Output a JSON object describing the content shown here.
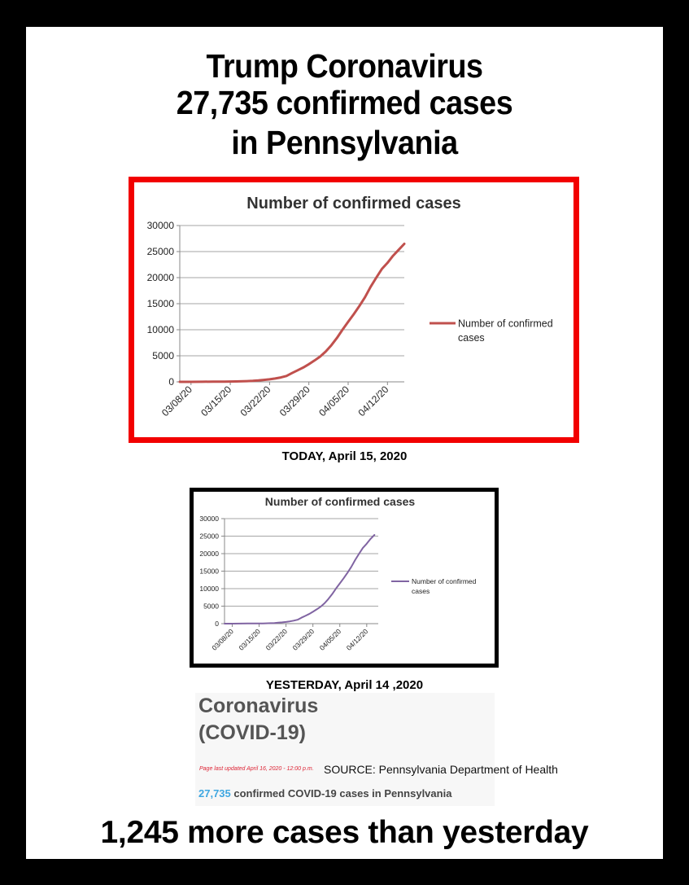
{
  "headline": {
    "line1": "Trump Coronavirus",
    "line2": "27,735 confirmed cases",
    "line3": "in Pennsylvania"
  },
  "captions": {
    "today": "TODAY, April 15, 2020",
    "yesterday": "YESTERDAY, April 14 ,2020"
  },
  "source_panel": {
    "title_line1": "Coronavirus",
    "title_line2": "(COVID-19)",
    "updated": "Page last updated April 16, 2020 - 12:00 p.m.",
    "credit": "SOURCE: Pennsylvania Department of Health",
    "cases_number": "27,735",
    "cases_text": " confirmed COVID-19 cases in Pennsylvania"
  },
  "bottom_headline": "1,245 more cases than yesterday",
  "chart_data": [
    {
      "type": "line",
      "title": "Number of confirmed cases",
      "xlabel": "",
      "ylabel": "",
      "ylim": [
        0,
        30000
      ],
      "y_ticks": [
        0,
        5000,
        10000,
        15000,
        20000,
        25000,
        30000
      ],
      "x_tick_labels": [
        "03/08/20",
        "03/15/20",
        "03/22/20",
        "03/29/20",
        "04/05/20",
        "04/12/20"
      ],
      "legend_position": "right",
      "grid": true,
      "color": "#c0504d",
      "series": [
        {
          "name": "Number of confirmed cases",
          "x": [
            "03/06/20",
            "03/08/20",
            "03/10/20",
            "03/12/20",
            "03/14/20",
            "03/16/20",
            "03/18/20",
            "03/19/20",
            "03/20/20",
            "03/21/20",
            "03/22/20",
            "03/23/20",
            "03/24/20",
            "03/25/20",
            "03/26/20",
            "03/27/20",
            "03/28/20",
            "03/29/20",
            "03/30/20",
            "03/31/20",
            "04/01/20",
            "04/02/20",
            "04/03/20",
            "04/04/20",
            "04/05/20",
            "04/06/20",
            "04/07/20",
            "04/08/20",
            "04/09/20",
            "04/10/20",
            "04/11/20",
            "04/12/20",
            "04/13/20",
            "04/14/20",
            "04/15/20"
          ],
          "values": [
            2,
            6,
            12,
            41,
            47,
            76,
            133,
            185,
            268,
            371,
            479,
            644,
            851,
            1127,
            1687,
            2218,
            2751,
            3394,
            4087,
            4843,
            5805,
            7016,
            8420,
            10017,
            11510,
            12980,
            14559,
            16239,
            18228,
            19979,
            21655,
            22833,
            24199,
            25345,
            26490
          ]
        }
      ]
    },
    {
      "type": "line",
      "title": "Number of confirmed cases",
      "xlabel": "",
      "ylabel": "",
      "ylim": [
        0,
        30000
      ],
      "y_ticks": [
        0,
        5000,
        10000,
        15000,
        20000,
        25000,
        30000
      ],
      "x_tick_labels": [
        "03/08/20",
        "03/15/20",
        "03/22/20",
        "03/29/20",
        "04/05/20",
        "04/12/20"
      ],
      "legend_position": "right",
      "grid": true,
      "color": "#8064a2",
      "series": [
        {
          "name": "Number of confirmed cases",
          "x": [
            "03/06/20",
            "03/08/20",
            "03/10/20",
            "03/12/20",
            "03/14/20",
            "03/16/20",
            "03/18/20",
            "03/19/20",
            "03/20/20",
            "03/21/20",
            "03/22/20",
            "03/23/20",
            "03/24/20",
            "03/25/20",
            "03/26/20",
            "03/27/20",
            "03/28/20",
            "03/29/20",
            "03/30/20",
            "03/31/20",
            "04/01/20",
            "04/02/20",
            "04/03/20",
            "04/04/20",
            "04/05/20",
            "04/06/20",
            "04/07/20",
            "04/08/20",
            "04/09/20",
            "04/10/20",
            "04/11/20",
            "04/12/20",
            "04/13/20",
            "04/14/20"
          ],
          "values": [
            2,
            6,
            12,
            41,
            47,
            76,
            133,
            185,
            268,
            371,
            479,
            644,
            851,
            1127,
            1687,
            2218,
            2751,
            3394,
            4087,
            4843,
            5805,
            7016,
            8420,
            10017,
            11510,
            12980,
            14559,
            16239,
            18228,
            19979,
            21655,
            22833,
            24199,
            25345
          ]
        }
      ]
    }
  ]
}
